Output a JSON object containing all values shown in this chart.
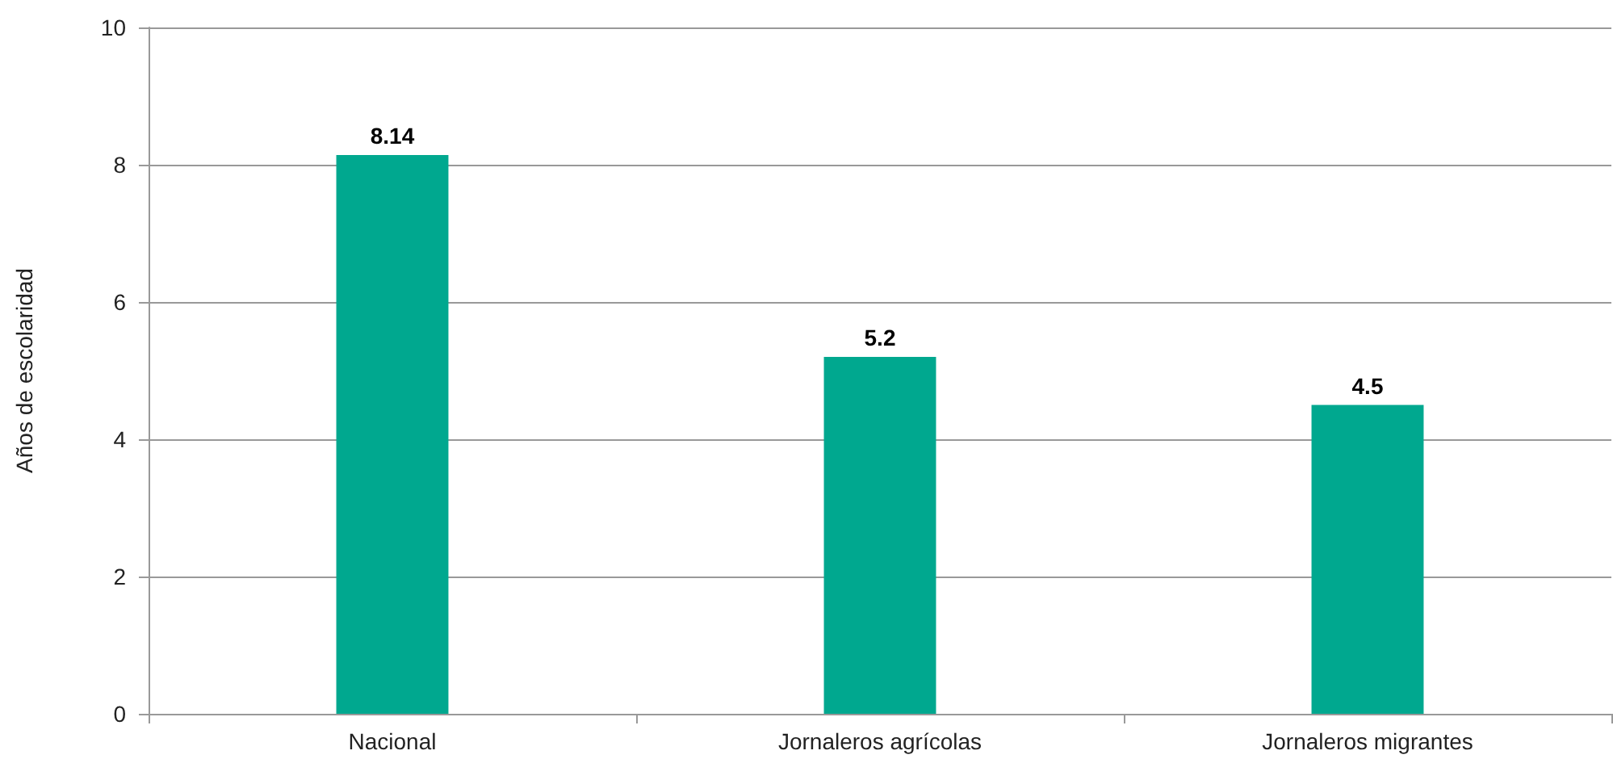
{
  "chart_data": {
    "type": "bar",
    "ylabel": "Años de escolaridad",
    "categories": [
      "Nacional",
      "Jornaleros agrícolas",
      "Jornaleros migrantes"
    ],
    "values": [
      8.14,
      5.2,
      4.5
    ],
    "color": "#00a88f",
    "ylim": [
      0,
      10
    ],
    "yticks": [
      0,
      2,
      4,
      6,
      8,
      10
    ],
    "grid": "y",
    "data_labels": true
  }
}
